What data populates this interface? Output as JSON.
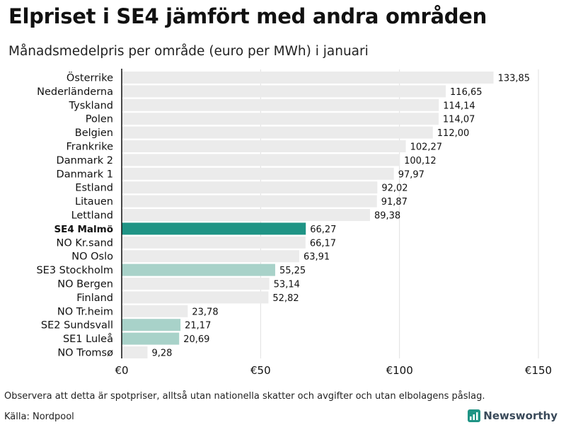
{
  "title": "Elpriset i SE4 jämfört med andra områden",
  "subtitle": "Månadsmedelpris per område (euro per MWh) i januari",
  "footnote": "Observera att detta är spotpriser, alltså utan nationella skatter och avgifter och utan elbolagens påslag.",
  "source": "Källa: Nordpool",
  "brand": {
    "name": "Newsworthy",
    "icon": "newsworthy-logo-icon"
  },
  "colors": {
    "default_bar": "#ebebeb",
    "highlight_bar": "#1f9485",
    "swedish_bar": "#a8d2c9",
    "axis": "#111111",
    "grid": "#e0e0e0"
  },
  "chart_data": {
    "type": "bar",
    "orientation": "horizontal",
    "title": "Elpriset i SE4 jämfört med andra områden",
    "subtitle": "Månadsmedelpris per område (euro per MWh) i januari",
    "xlabel": "",
    "ylabel": "",
    "xlim": [
      0,
      150
    ],
    "xticks": [
      0,
      50,
      100,
      150
    ],
    "xtick_labels": [
      "€0",
      "€50",
      "€100",
      "€150"
    ],
    "grid": true,
    "bars": [
      {
        "category": "Österrike",
        "value": 133.85,
        "label": "133,85",
        "style": "default"
      },
      {
        "category": "Nederländerna",
        "value": 116.65,
        "label": "116,65",
        "style": "default"
      },
      {
        "category": "Tyskland",
        "value": 114.14,
        "label": "114,14",
        "style": "default"
      },
      {
        "category": "Polen",
        "value": 114.07,
        "label": "114,07",
        "style": "default"
      },
      {
        "category": "Belgien",
        "value": 112.0,
        "label": "112,00",
        "style": "default"
      },
      {
        "category": "Frankrike",
        "value": 102.27,
        "label": "102,27",
        "style": "default"
      },
      {
        "category": "Danmark 2",
        "value": 100.12,
        "label": "100,12",
        "style": "default"
      },
      {
        "category": "Danmark 1",
        "value": 97.97,
        "label": "97,97",
        "style": "default"
      },
      {
        "category": "Estland",
        "value": 92.02,
        "label": "92,02",
        "style": "default"
      },
      {
        "category": "Litauen",
        "value": 91.87,
        "label": "91,87",
        "style": "default"
      },
      {
        "category": "Lettland",
        "value": 89.38,
        "label": "89,38",
        "style": "default"
      },
      {
        "category": "SE4 Malmö",
        "value": 66.27,
        "label": "66,27",
        "style": "highlight"
      },
      {
        "category": "NO Kr.sand",
        "value": 66.17,
        "label": "66,17",
        "style": "default"
      },
      {
        "category": "NO Oslo",
        "value": 63.91,
        "label": "63,91",
        "style": "default"
      },
      {
        "category": "SE3 Stockholm",
        "value": 55.25,
        "label": "55,25",
        "style": "swedish"
      },
      {
        "category": "NO Bergen",
        "value": 53.14,
        "label": "53,14",
        "style": "default"
      },
      {
        "category": "Finland",
        "value": 52.82,
        "label": "52,82",
        "style": "default"
      },
      {
        "category": "NO Tr.heim",
        "value": 23.78,
        "label": "23,78",
        "style": "default"
      },
      {
        "category": "SE2 Sundsvall",
        "value": 21.17,
        "label": "21,17",
        "style": "swedish"
      },
      {
        "category": "SE1 Luleå",
        "value": 20.69,
        "label": "20,69",
        "style": "swedish"
      },
      {
        "category": "NO Tromsø",
        "value": 9.28,
        "label": "9,28",
        "style": "default"
      }
    ]
  }
}
